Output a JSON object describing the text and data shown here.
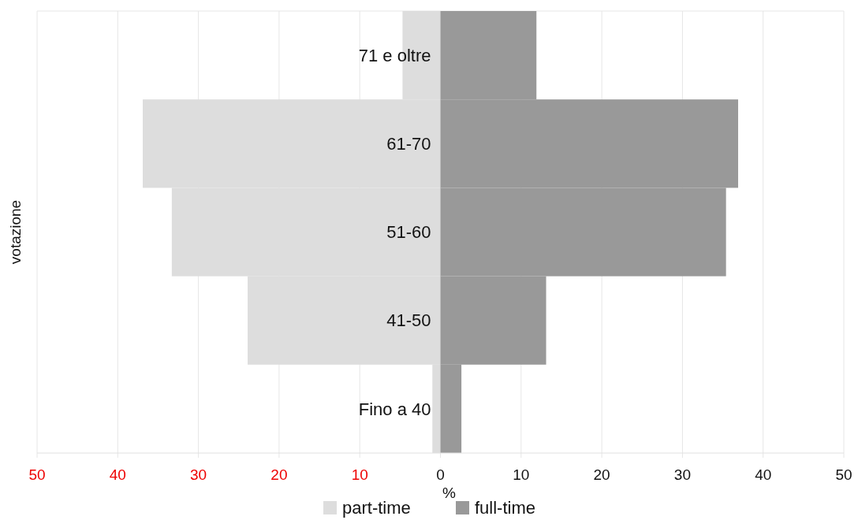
{
  "chart_data": {
    "type": "bar",
    "orientation": "horizontal",
    "categories": [
      "71 e oltre",
      "61-70",
      "51-60",
      "41-50",
      "Fino a 40"
    ],
    "series": [
      {
        "name": "part-time",
        "color": "#dddddd",
        "values": [
          -4.7,
          -36.9,
          -33.3,
          -23.9,
          -1.0
        ]
      },
      {
        "name": "full-time",
        "color": "#999999",
        "values": [
          11.9,
          36.9,
          35.4,
          13.1,
          2.6
        ]
      }
    ],
    "xlim": [
      -50,
      50
    ],
    "xticks": [
      {
        "value": -50,
        "label": "50"
      },
      {
        "value": -40,
        "label": "40"
      },
      {
        "value": -30,
        "label": "30"
      },
      {
        "value": -20,
        "label": "20"
      },
      {
        "value": -10,
        "label": "10"
      },
      0,
      10,
      20,
      30,
      40,
      50
    ],
    "stacked": true,
    "xlabel": "%",
    "ylabel": "votazione",
    "grid": "x",
    "legend": "bottom"
  }
}
